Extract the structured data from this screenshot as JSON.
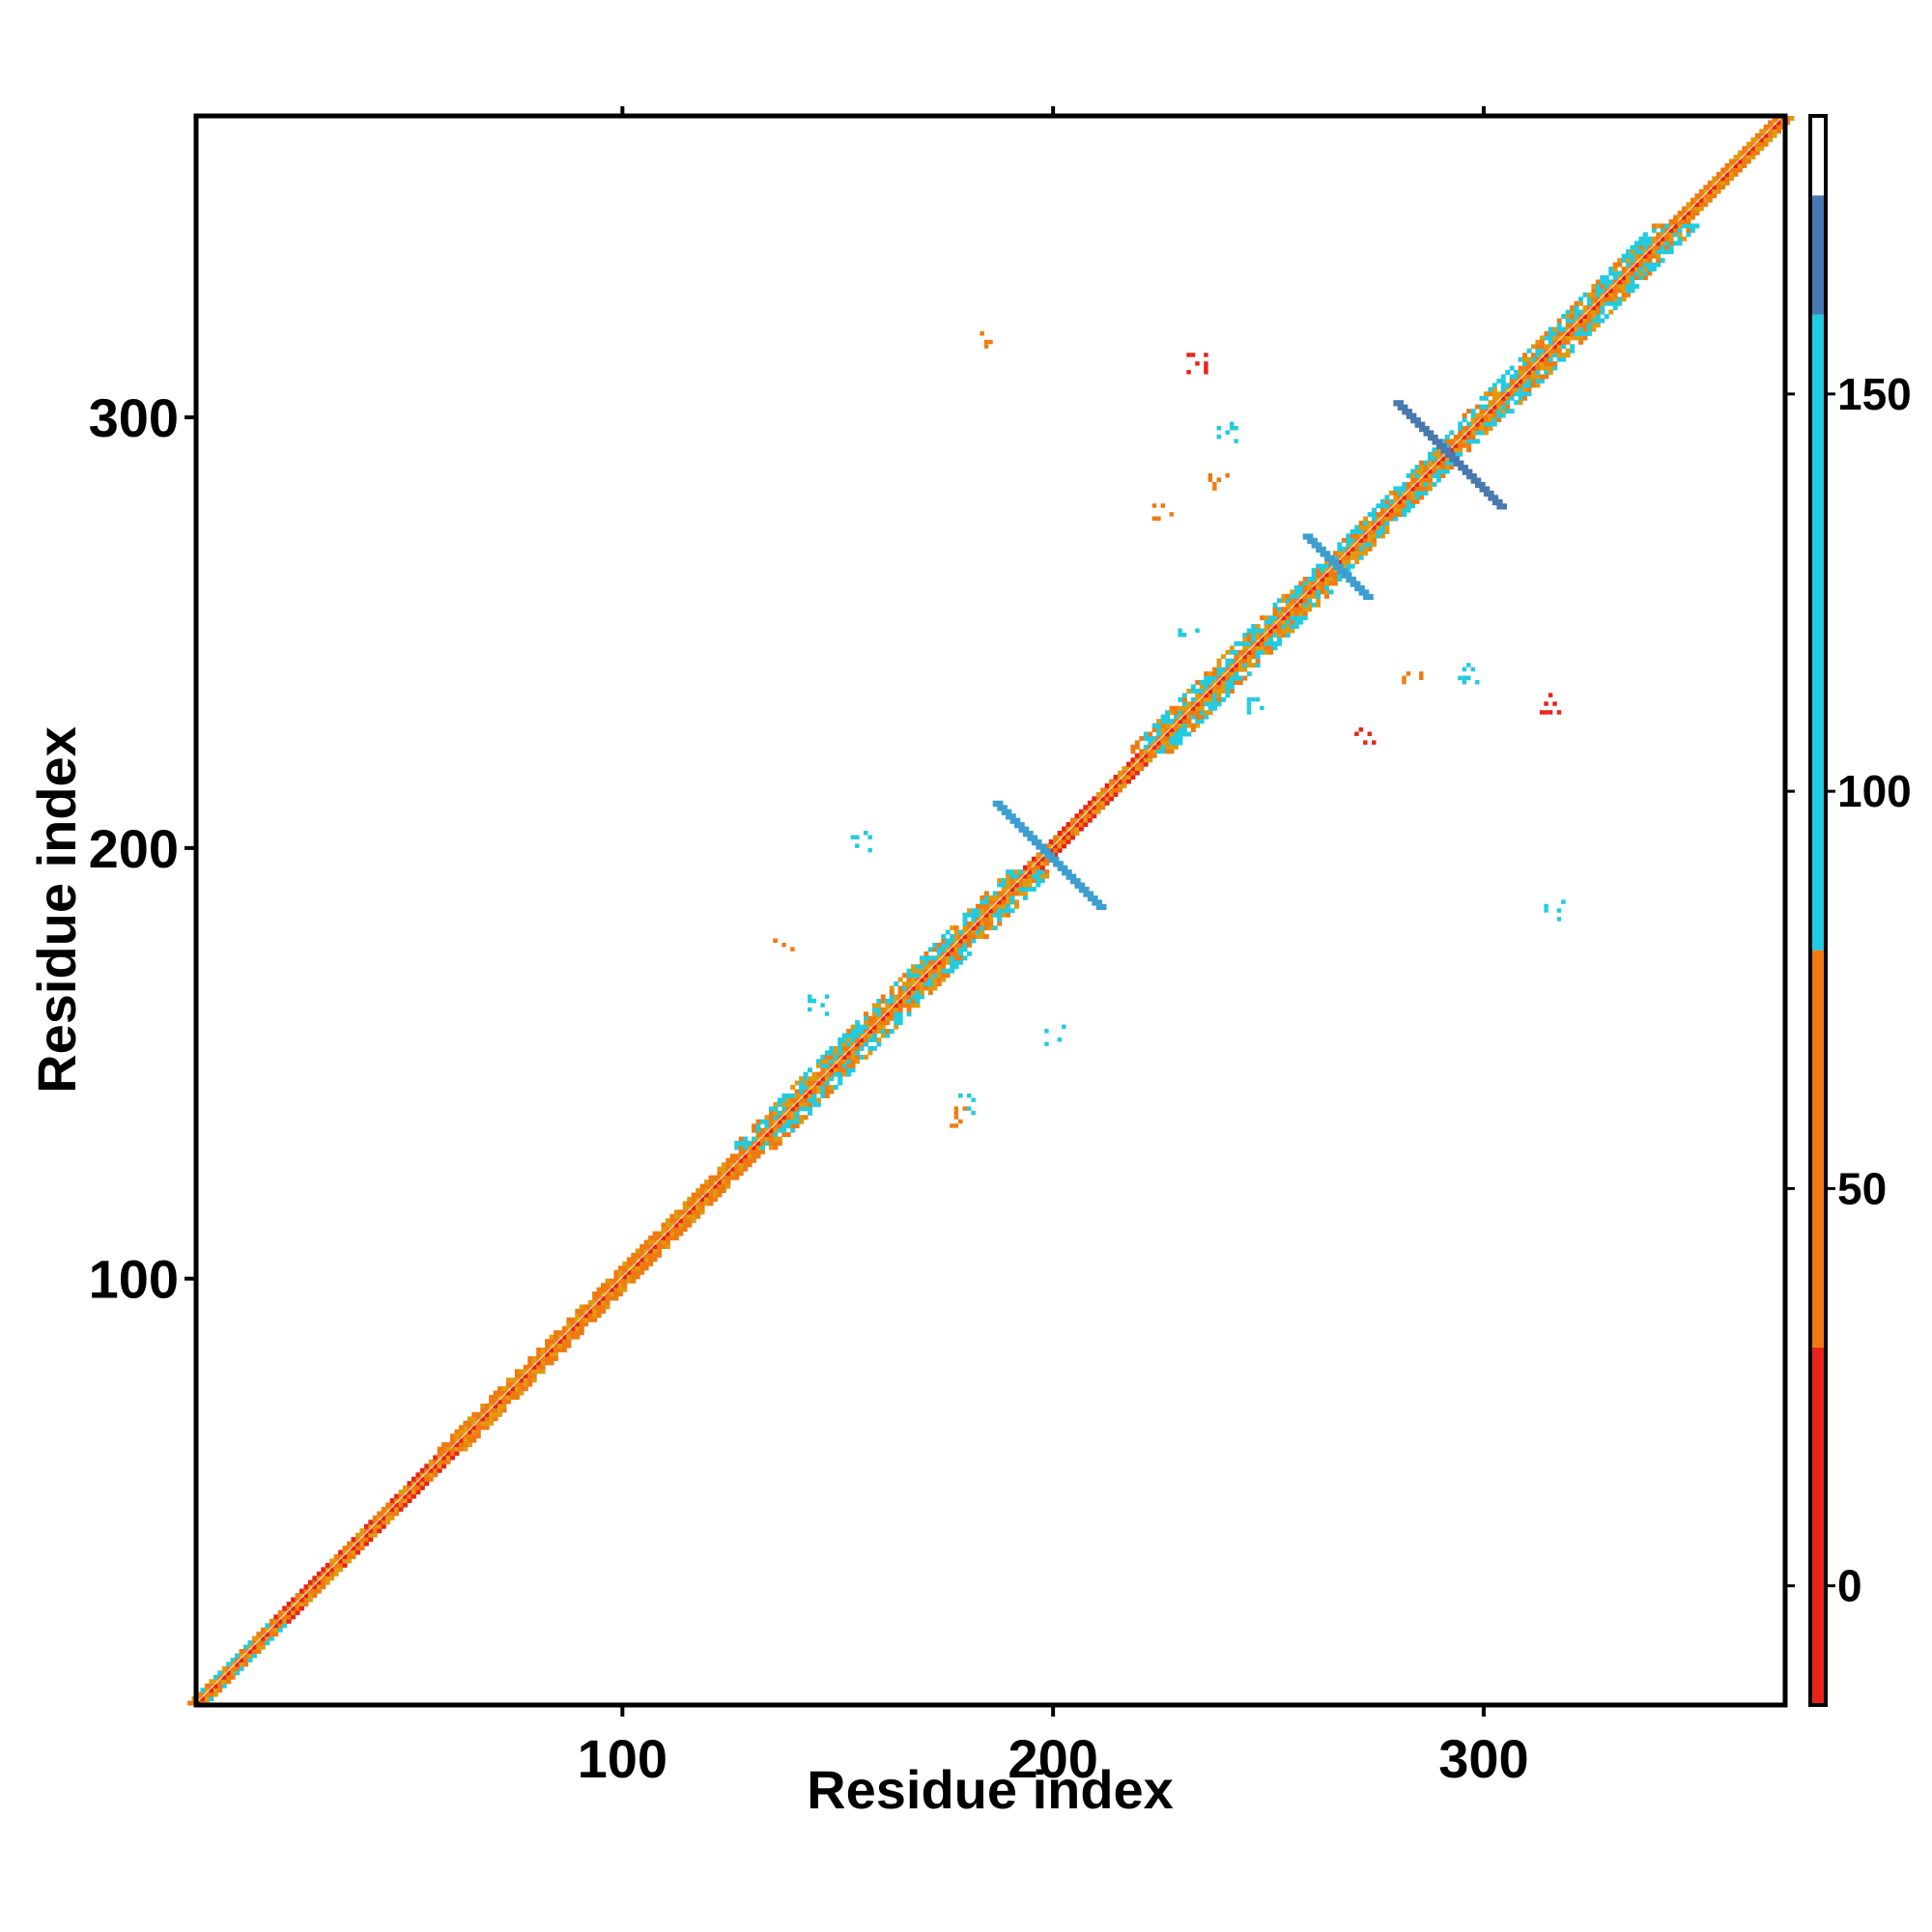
{
  "chart_data": {
    "type": "heatmap",
    "title": "",
    "xlabel": "Residue index",
    "ylabel": "Residue index",
    "xlim": [
      1,
      370
    ],
    "ylim": [
      1,
      370
    ],
    "x_ticks": [
      100,
      200,
      300
    ],
    "y_ticks": [
      100,
      200,
      300
    ],
    "tick_labels_x": [
      "100",
      "200",
      "300"
    ],
    "tick_labels_y": [
      "100",
      "200",
      "300"
    ],
    "colorbar": {
      "range": [
        -15,
        185
      ],
      "ticks": [
        0,
        50,
        100,
        150
      ],
      "tick_labels": [
        "0",
        "50",
        "100",
        "150"
      ],
      "bands": [
        {
          "from": -15,
          "to": 30,
          "color": "#e8231b"
        },
        {
          "from": 30,
          "to": 80,
          "color": "#f07a12"
        },
        {
          "from": 80,
          "to": 160,
          "color": "#22cbe0"
        },
        {
          "from": 160,
          "to": 175,
          "color": "#4a78b0"
        },
        {
          "from": 175,
          "to": 185,
          "color": "#ffffff"
        }
      ]
    },
    "colors": {
      "red": "#e8231b",
      "orange": "#f07a12",
      "amber": "#e09a10",
      "cyan": "#22cbe0",
      "blue": "#3c9ed0",
      "steel": "#4a78b0"
    },
    "diagonal_segments": [
      {
        "from": 1,
        "to": 20,
        "width": 2,
        "color": "cyan"
      },
      {
        "from": 20,
        "to": 60,
        "width": 2,
        "color": "red"
      },
      {
        "from": 60,
        "to": 130,
        "width": 3,
        "color": "orange"
      },
      {
        "from": 130,
        "to": 155,
        "width": 5,
        "color": "cyan"
      },
      {
        "from": 155,
        "to": 195,
        "width": 5,
        "color": "cyan"
      },
      {
        "from": 195,
        "to": 222,
        "width": 2,
        "color": "red"
      },
      {
        "from": 222,
        "to": 260,
        "width": 5,
        "color": "cyan"
      },
      {
        "from": 260,
        "to": 300,
        "width": 4,
        "color": "cyan"
      },
      {
        "from": 300,
        "to": 345,
        "width": 5,
        "color": "cyan"
      },
      {
        "from": 345,
        "to": 370,
        "width": 2,
        "color": "orange"
      }
    ],
    "crosses": [
      {
        "x": 198,
        "y": 198,
        "half_length": 12,
        "color": "blue"
      },
      {
        "x": 291,
        "y": 291,
        "half_length": 12,
        "color": "steel"
      },
      {
        "x": 265,
        "y": 265,
        "half_length": 7,
        "color": "blue"
      }
    ],
    "off_diagonal_clusters": [
      {
        "x": 155,
        "y": 201,
        "color": "cyan"
      },
      {
        "x": 177,
        "y": 137,
        "color": "orange"
      },
      {
        "x": 137,
        "y": 177,
        "color": "orange"
      },
      {
        "x": 200,
        "y": 156,
        "color": "cyan"
      },
      {
        "x": 185,
        "y": 317,
        "color": "orange"
      },
      {
        "x": 240,
        "y": 296,
        "color": "cyan"
      },
      {
        "x": 233,
        "y": 312,
        "color": "red"
      },
      {
        "x": 225,
        "y": 277,
        "color": "orange"
      },
      {
        "x": 272,
        "y": 226,
        "color": "red"
      },
      {
        "x": 296,
        "y": 240,
        "color": "cyan"
      },
      {
        "x": 315,
        "y": 233,
        "color": "red"
      },
      {
        "x": 316,
        "y": 185,
        "color": "cyan"
      },
      {
        "x": 283,
        "y": 239,
        "color": "orange"
      },
      {
        "x": 238,
        "y": 284,
        "color": "orange"
      },
      {
        "x": 145,
        "y": 163,
        "color": "cyan"
      },
      {
        "x": 180,
        "y": 140,
        "color": "cyan"
      },
      {
        "x": 231,
        "y": 249,
        "color": "cyan"
      },
      {
        "x": 247,
        "y": 232,
        "color": "cyan"
      }
    ]
  }
}
